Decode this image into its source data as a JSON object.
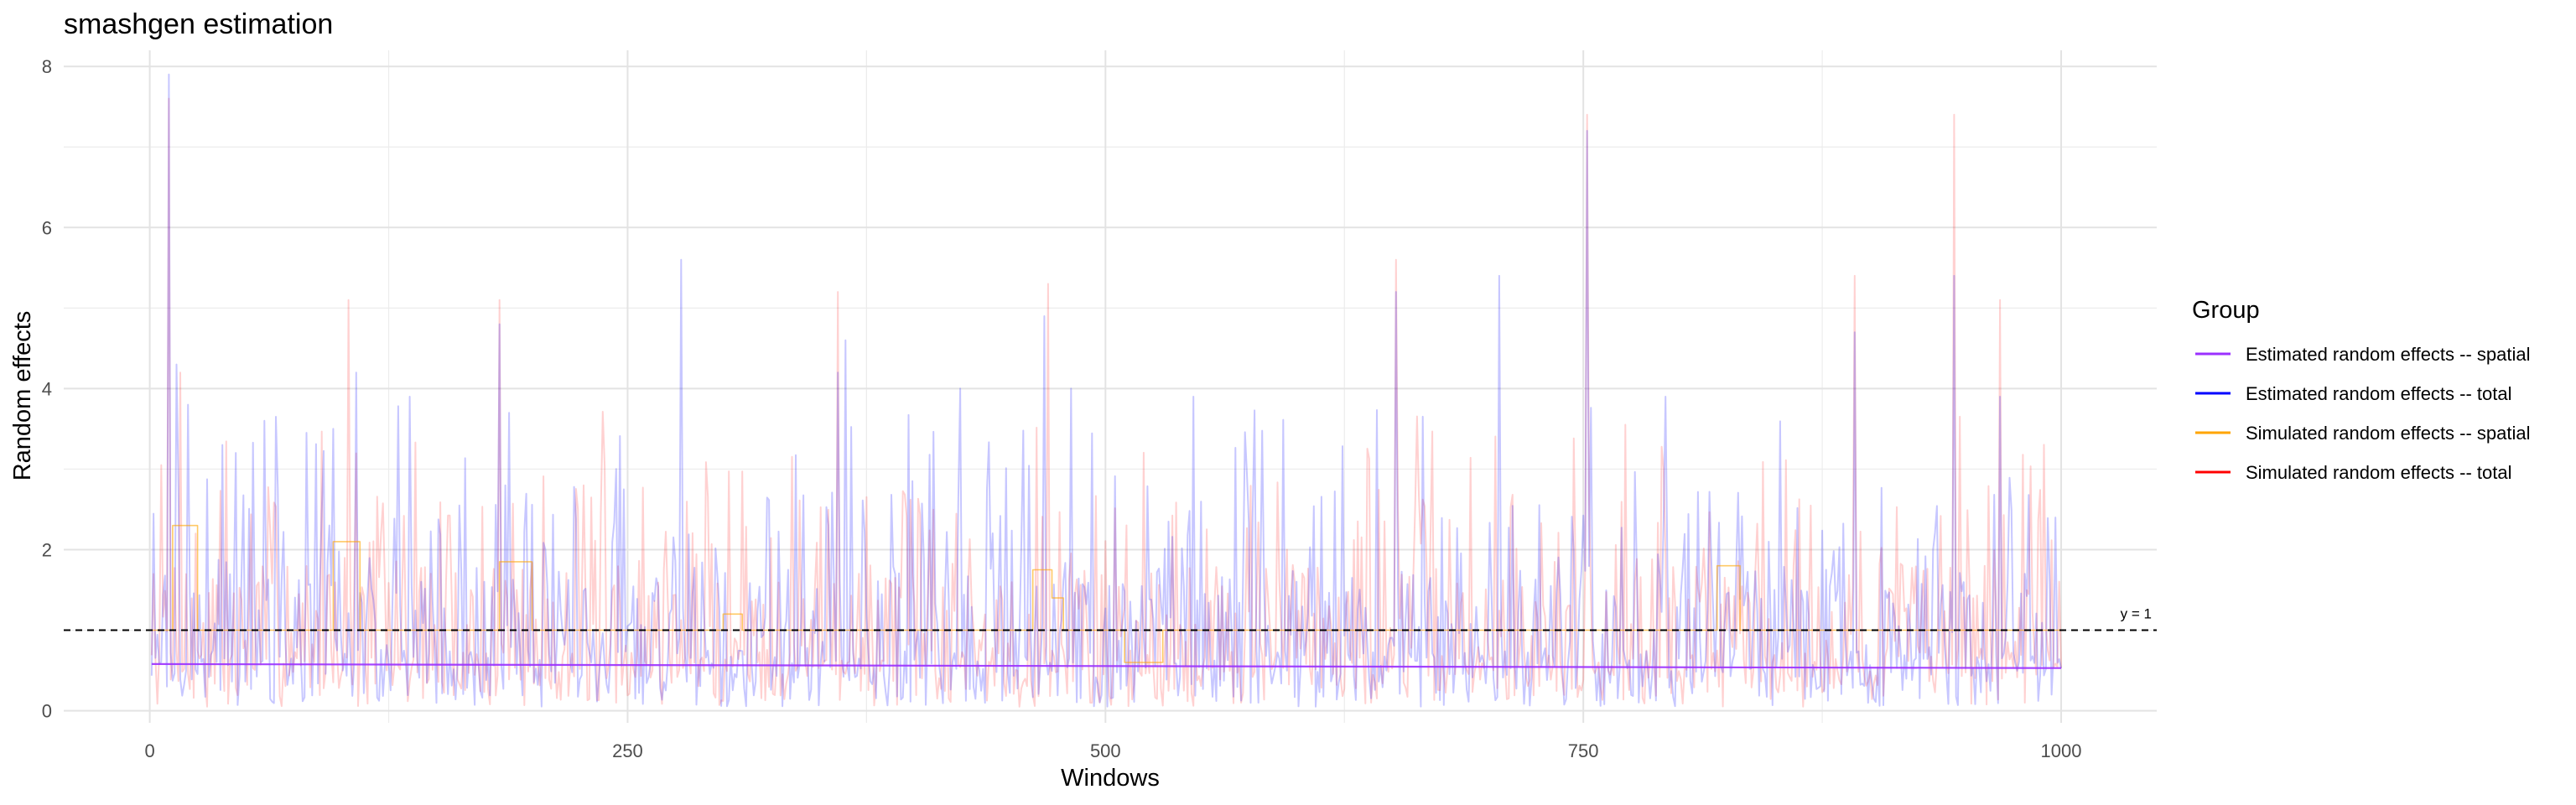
{
  "chart_data": {
    "type": "line",
    "title": "smashgen estimation",
    "xlabel": "Windows",
    "ylabel": "Random effects",
    "xlim": [
      -45,
      1050
    ],
    "ylim": [
      -0.15,
      8.2
    ],
    "x_ticks": [
      0,
      250,
      500,
      750,
      1000
    ],
    "y_ticks": [
      0,
      2,
      4,
      6,
      8
    ],
    "grid": true,
    "legend": {
      "title": "Group",
      "position": "right"
    },
    "reference_line": {
      "y": 1,
      "label": "y = 1",
      "style": "dashed",
      "color": "#000000"
    },
    "series": [
      {
        "name": "Estimated random effects -- spatial",
        "color": "#9B30FF",
        "kind": "near-constant",
        "x": [
          1,
          1000
        ],
        "values": [
          0.58,
          0.53
        ]
      },
      {
        "name": "Estimated random effects -- total",
        "color": "#0000FF",
        "kind": "noisy",
        "n": 1000,
        "peaks": [
          [
            10,
            7.9
          ],
          [
            14,
            4.3
          ],
          [
            20,
            3.8
          ],
          [
            38,
            3.3
          ],
          [
            60,
            3.6
          ],
          [
            96,
            3.5
          ],
          [
            108,
            4.2
          ],
          [
            136,
            3.9
          ],
          [
            183,
            4.8
          ],
          [
            188,
            3.7
          ],
          [
            278,
            5.6
          ],
          [
            360,
            4.2
          ],
          [
            364,
            4.6
          ],
          [
            424,
            4.0
          ],
          [
            468,
            4.9
          ],
          [
            482,
            4.0
          ],
          [
            546,
            3.9
          ],
          [
            652,
            5.2
          ],
          [
            706,
            5.4
          ],
          [
            752,
            7.2
          ],
          [
            793,
            3.9
          ],
          [
            892,
            4.7
          ],
          [
            944,
            5.4
          ],
          [
            968,
            3.9
          ],
          [
            997,
            2.4
          ]
        ]
      },
      {
        "name": "Simulated random effects -- spatial",
        "color": "#FFA500",
        "kind": "steps",
        "steps": [
          [
            0,
            12,
            1.0
          ],
          [
            12,
            25,
            2.3
          ],
          [
            25,
            96,
            1.0
          ],
          [
            96,
            110,
            2.1
          ],
          [
            110,
            183,
            1.0
          ],
          [
            183,
            200,
            1.85
          ],
          [
            200,
            300,
            1.0
          ],
          [
            300,
            310,
            1.2
          ],
          [
            310,
            462,
            1.0
          ],
          [
            462,
            472,
            1.75
          ],
          [
            472,
            478,
            1.4
          ],
          [
            478,
            510,
            1.0
          ],
          [
            510,
            530,
            0.6
          ],
          [
            530,
            820,
            1.0
          ],
          [
            820,
            832,
            1.8
          ],
          [
            832,
            1000,
            1.0
          ]
        ]
      },
      {
        "name": "Simulated random effects -- total",
        "color": "#FF0000",
        "kind": "noisy",
        "n": 1000,
        "peaks": [
          [
            10,
            7.6
          ],
          [
            16,
            4.2
          ],
          [
            104,
            5.1
          ],
          [
            183,
            5.1
          ],
          [
            360,
            5.2
          ],
          [
            470,
            5.3
          ],
          [
            652,
            5.6
          ],
          [
            752,
            7.4
          ],
          [
            892,
            5.4
          ],
          [
            944,
            7.4
          ],
          [
            968,
            5.1
          ]
        ]
      }
    ]
  }
}
